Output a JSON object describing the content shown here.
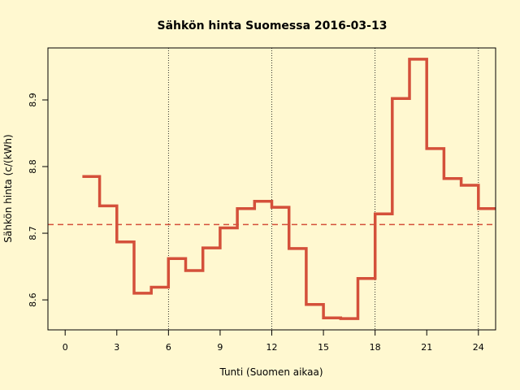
{
  "chart_data": {
    "type": "line",
    "step": true,
    "title": "Sähkön hinta Suomessa 2016-03-13",
    "xlabel": "Tunti (Suomen aikaa)",
    "ylabel": "Sähkön hinta (c/(kWh)",
    "xlim": [
      -1,
      25
    ],
    "ylim": [
      8.555,
      8.978
    ],
    "x_ticks": [
      0,
      3,
      6,
      9,
      12,
      15,
      18,
      21,
      24
    ],
    "x_tick_labels": [
      "0",
      "3",
      "6",
      "9",
      "12",
      "15",
      "18",
      "21",
      "24"
    ],
    "y_ticks": [
      8.6,
      8.7,
      8.8,
      8.9
    ],
    "y_tick_labels": [
      "8.6",
      "8.7",
      "8.8",
      "8.9"
    ],
    "vertical_gridlines": [
      6,
      12,
      18,
      24
    ],
    "mean_value": 8.713,
    "line_color": "#d4503a",
    "series": [
      {
        "x": [
          1,
          2,
          3,
          4,
          5,
          6,
          7,
          8,
          9,
          10,
          11,
          12,
          13,
          14,
          15,
          16,
          17,
          18,
          19,
          20,
          21,
          22,
          23,
          24
        ],
        "values": [
          8.785,
          8.741,
          8.687,
          8.61,
          8.619,
          8.662,
          8.644,
          8.678,
          8.708,
          8.737,
          8.748,
          8.739,
          8.677,
          8.593,
          8.573,
          8.572,
          8.632,
          8.729,
          8.902,
          8.961,
          8.827,
          8.782,
          8.772,
          8.737
        ]
      }
    ]
  }
}
